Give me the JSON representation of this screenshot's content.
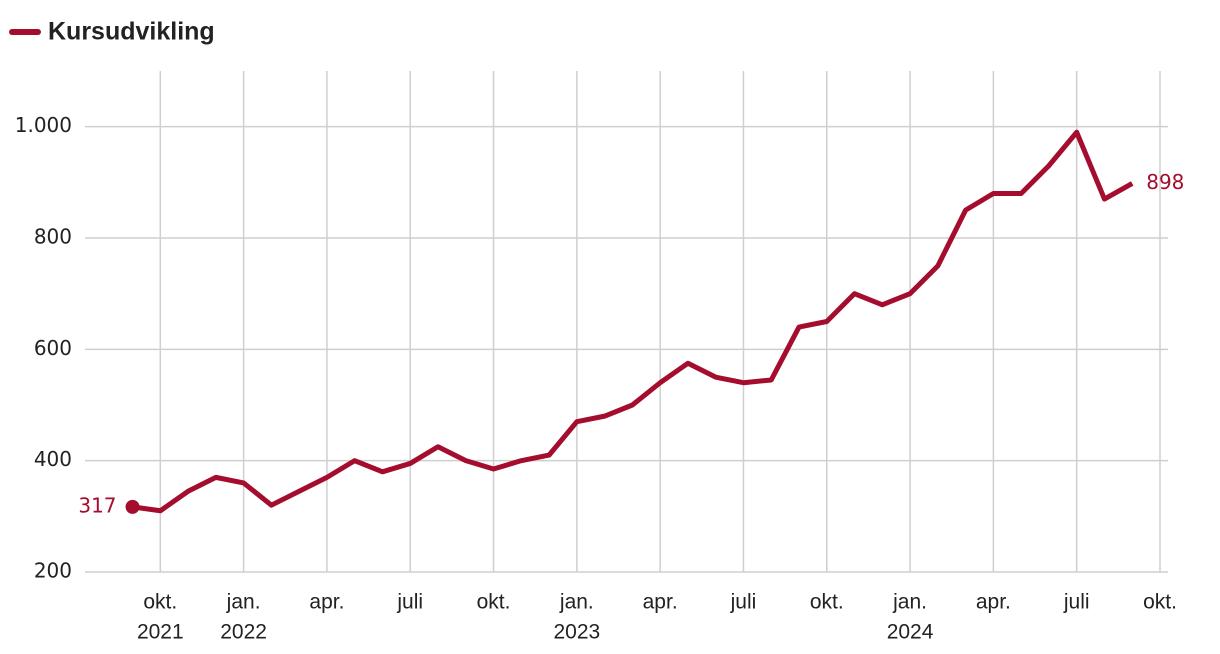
{
  "chart_data": {
    "type": "line",
    "x": [
      "2021-09",
      "2021-10",
      "2021-11",
      "2021-12",
      "2022-01",
      "2022-02",
      "2022-03",
      "2022-04",
      "2022-05",
      "2022-06",
      "2022-07",
      "2022-08",
      "2022-09",
      "2022-10",
      "2022-11",
      "2022-12",
      "2023-01",
      "2023-02",
      "2023-03",
      "2023-04",
      "2023-05",
      "2023-06",
      "2023-07",
      "2023-08",
      "2023-09",
      "2023-10",
      "2023-11",
      "2023-12",
      "2024-01",
      "2024-02",
      "2024-03",
      "2024-04",
      "2024-05",
      "2024-06",
      "2024-07",
      "2024-08",
      "2024-09"
    ],
    "series": [
      {
        "name": "Kursudvikling",
        "color": "#a50d2e",
        "values": [
          317,
          310,
          345,
          370,
          360,
          320,
          345,
          370,
          400,
          380,
          395,
          425,
          400,
          385,
          400,
          410,
          470,
          480,
          500,
          540,
          575,
          550,
          540,
          545,
          640,
          650,
          700,
          680,
          700,
          750,
          850,
          880,
          880,
          930,
          990,
          870,
          898
        ]
      }
    ],
    "xlim": [
      "2021-07",
      "2024-10"
    ],
    "xticks": [
      {
        "value": "2021-10",
        "label": "okt.",
        "year": "2021"
      },
      {
        "value": "2022-01",
        "label": "jan.",
        "year": "2022"
      },
      {
        "value": "2022-04",
        "label": "apr."
      },
      {
        "value": "2022-07",
        "label": "juli"
      },
      {
        "value": "2022-10",
        "label": "okt."
      },
      {
        "value": "2023-01",
        "label": "jan.",
        "year": "2023"
      },
      {
        "value": "2023-04",
        "label": "apr."
      },
      {
        "value": "2023-07",
        "label": "juli"
      },
      {
        "value": "2023-10",
        "label": "okt."
      },
      {
        "value": "2024-01",
        "label": "jan.",
        "year": "2024"
      },
      {
        "value": "2024-04",
        "label": "apr."
      },
      {
        "value": "2024-07",
        "label": "juli"
      },
      {
        "value": "2024-10",
        "label": "okt."
      }
    ],
    "ylim": [
      200,
      1100
    ],
    "yticks": [
      200,
      400,
      600,
      800,
      {
        "value": 1000,
        "label": "1.000"
      }
    ],
    "grid": true,
    "legend": "top-left"
  }
}
